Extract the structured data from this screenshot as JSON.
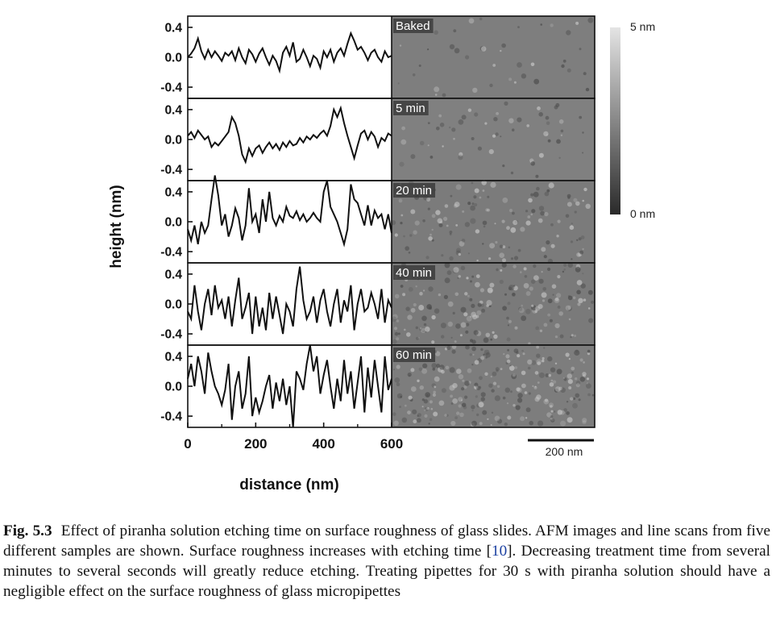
{
  "figure": {
    "ylabel": "height (nm)",
    "xlabel": "distance (nm)",
    "x_ticks": [
      "0",
      "200",
      "400",
      "600"
    ],
    "y_ticks": [
      "0.4",
      "0.0",
      "-0.4"
    ],
    "colorbar": {
      "max_label": "5 nm",
      "min_label": "0 nm"
    },
    "scale_bar_label": "200 nm"
  },
  "chart_data": {
    "type": "line",
    "xlabel": "distance (nm)",
    "ylabel": "height (nm)",
    "xlim": [
      0,
      600
    ],
    "ylim": [
      -0.55,
      0.55
    ],
    "panels": [
      {
        "label": "Baked",
        "image_tone": "#7e7e7e",
        "grain": 0.02,
        "x": [
          0,
          10,
          20,
          30,
          40,
          50,
          60,
          70,
          80,
          90,
          100,
          110,
          120,
          130,
          140,
          150,
          160,
          170,
          180,
          190,
          200,
          210,
          220,
          230,
          240,
          250,
          260,
          270,
          280,
          290,
          300,
          310,
          320,
          330,
          340,
          350,
          360,
          370,
          380,
          390,
          400,
          410,
          420,
          430,
          440,
          450,
          460,
          470,
          480,
          490,
          500,
          510,
          520,
          530,
          540,
          550,
          560,
          570,
          580,
          590,
          600
        ],
        "y": [
          0.0,
          0.05,
          0.12,
          0.25,
          0.08,
          -0.02,
          0.1,
          0.0,
          0.08,
          0.02,
          -0.05,
          0.06,
          0.02,
          0.08,
          -0.04,
          0.12,
          0.0,
          -0.08,
          0.1,
          0.04,
          -0.06,
          0.05,
          0.12,
          0.0,
          -0.1,
          0.02,
          -0.05,
          -0.18,
          0.06,
          0.14,
          0.02,
          0.2,
          -0.06,
          -0.02,
          0.1,
          0.0,
          -0.12,
          0.02,
          -0.02,
          -0.14,
          0.08,
          0.0,
          0.1,
          -0.06,
          0.06,
          0.12,
          0.02,
          0.18,
          0.32,
          0.22,
          0.1,
          0.14,
          0.06,
          -0.04,
          0.06,
          0.1,
          0.0,
          -0.06,
          0.08,
          0.0,
          0.02
        ]
      },
      {
        "label": "5 min",
        "image_tone": "#808080",
        "grain": 0.03,
        "x": [
          0,
          10,
          20,
          30,
          40,
          50,
          60,
          70,
          80,
          90,
          100,
          110,
          120,
          130,
          140,
          150,
          160,
          170,
          180,
          190,
          200,
          210,
          220,
          230,
          240,
          250,
          260,
          270,
          280,
          290,
          300,
          310,
          320,
          330,
          340,
          350,
          360,
          370,
          380,
          390,
          400,
          410,
          420,
          430,
          440,
          450,
          460,
          470,
          480,
          490,
          500,
          510,
          520,
          530,
          540,
          550,
          560,
          570,
          580,
          590,
          600
        ],
        "y": [
          0.05,
          0.1,
          0.02,
          0.12,
          0.06,
          0.0,
          0.04,
          -0.1,
          -0.04,
          -0.08,
          -0.02,
          0.04,
          0.1,
          0.3,
          0.22,
          0.05,
          -0.2,
          -0.3,
          -0.12,
          -0.22,
          -0.12,
          -0.08,
          -0.18,
          -0.1,
          -0.04,
          -0.12,
          -0.06,
          -0.14,
          -0.04,
          -0.1,
          -0.02,
          -0.08,
          -0.06,
          0.02,
          -0.04,
          0.04,
          0.0,
          0.06,
          0.02,
          0.08,
          0.12,
          0.05,
          0.18,
          0.4,
          0.3,
          0.42,
          0.22,
          0.05,
          -0.1,
          -0.25,
          -0.08,
          0.08,
          0.12,
          0.0,
          0.1,
          0.04,
          -0.1,
          0.02,
          -0.02,
          0.08,
          0.05
        ]
      },
      {
        "label": "20 min",
        "image_tone": "#7b7b7b",
        "grain": 0.07,
        "x": [
          0,
          10,
          20,
          30,
          40,
          50,
          60,
          70,
          80,
          90,
          100,
          110,
          120,
          130,
          140,
          150,
          160,
          170,
          180,
          190,
          200,
          210,
          220,
          230,
          240,
          250,
          260,
          270,
          280,
          290,
          300,
          310,
          320,
          330,
          340,
          350,
          360,
          370,
          380,
          390,
          400,
          410,
          420,
          430,
          440,
          450,
          460,
          470,
          480,
          490,
          500,
          510,
          520,
          530,
          540,
          550,
          560,
          570,
          580,
          590,
          600
        ],
        "y": [
          -0.1,
          -0.25,
          -0.05,
          -0.3,
          0.0,
          -0.15,
          -0.05,
          0.3,
          0.62,
          0.35,
          -0.05,
          0.1,
          -0.2,
          -0.05,
          0.18,
          0.05,
          -0.25,
          -0.05,
          0.45,
          0.0,
          0.1,
          -0.15,
          0.3,
          0.0,
          0.4,
          0.05,
          -0.05,
          0.08,
          0.0,
          0.2,
          0.08,
          0.05,
          0.14,
          0.02,
          0.1,
          0.0,
          0.05,
          0.12,
          0.05,
          0.0,
          0.4,
          0.55,
          0.2,
          0.1,
          0.0,
          -0.15,
          -0.3,
          -0.1,
          0.5,
          0.3,
          0.25,
          0.1,
          -0.05,
          0.22,
          -0.05,
          0.15,
          0.05,
          0.1,
          -0.1,
          0.1,
          -0.15
        ]
      },
      {
        "label": "40 min",
        "image_tone": "#7a7a7a",
        "grain": 0.1,
        "x": [
          0,
          10,
          20,
          30,
          40,
          50,
          60,
          70,
          80,
          90,
          100,
          110,
          120,
          130,
          140,
          150,
          160,
          170,
          180,
          190,
          200,
          210,
          220,
          230,
          240,
          250,
          260,
          270,
          280,
          290,
          300,
          310,
          320,
          330,
          340,
          350,
          360,
          370,
          380,
          390,
          400,
          410,
          420,
          430,
          440,
          450,
          460,
          470,
          480,
          490,
          500,
          510,
          520,
          530,
          540,
          550,
          560,
          570,
          580,
          590,
          600
        ],
        "y": [
          -0.1,
          -0.2,
          0.25,
          -0.1,
          -0.35,
          0.0,
          0.2,
          -0.15,
          0.25,
          -0.05,
          0.05,
          -0.2,
          0.1,
          -0.3,
          0.05,
          0.35,
          -0.2,
          -0.05,
          0.15,
          -0.4,
          0.1,
          -0.3,
          -0.05,
          -0.35,
          0.15,
          -0.2,
          0.1,
          -0.15,
          -0.4,
          0.0,
          -0.1,
          -0.3,
          0.2,
          0.5,
          0.05,
          -0.2,
          -0.1,
          0.1,
          -0.25,
          0.05,
          0.2,
          -0.1,
          -0.3,
          0.0,
          0.2,
          -0.25,
          0.05,
          -0.1,
          0.25,
          -0.35,
          0.0,
          0.2,
          -0.1,
          -0.05,
          0.15,
          0.0,
          -0.2,
          0.2,
          -0.25,
          0.05,
          -0.05
        ]
      },
      {
        "label": "60 min",
        "image_tone": "#7d7d7d",
        "grain": 0.13,
        "x": [
          0,
          10,
          20,
          30,
          40,
          50,
          60,
          70,
          80,
          90,
          100,
          110,
          120,
          130,
          140,
          150,
          160,
          170,
          180,
          190,
          200,
          210,
          220,
          230,
          240,
          250,
          260,
          270,
          280,
          290,
          300,
          310,
          320,
          330,
          340,
          350,
          360,
          370,
          380,
          390,
          400,
          410,
          420,
          430,
          440,
          450,
          460,
          470,
          480,
          490,
          500,
          510,
          520,
          530,
          540,
          550,
          560,
          570,
          580,
          590,
          600
        ],
        "y": [
          0.1,
          0.3,
          0.0,
          0.4,
          0.2,
          -0.1,
          0.45,
          0.2,
          0.0,
          -0.1,
          -0.25,
          -0.05,
          0.3,
          -0.45,
          0.0,
          0.2,
          -0.3,
          -0.1,
          0.4,
          -0.4,
          -0.15,
          -0.35,
          -0.2,
          0.0,
          0.15,
          -0.3,
          0.05,
          -0.2,
          0.1,
          -0.25,
          0.0,
          -0.55,
          0.2,
          0.1,
          -0.05,
          0.3,
          0.55,
          0.2,
          0.4,
          -0.1,
          0.15,
          0.35,
          0.0,
          -0.3,
          0.1,
          -0.2,
          0.35,
          -0.1,
          0.2,
          -0.3,
          0.05,
          0.4,
          -0.35,
          0.25,
          -0.15,
          0.35,
          0.0,
          -0.35,
          0.4,
          -0.05,
          0.1
        ]
      }
    ]
  },
  "caption": {
    "label": "Fig. 5.3",
    "text_before_ref": "Effect of piranha solution etching time on surface roughness of glass slides. AFM images and line scans from five different samples are shown. Surface roughness increases with etching time [",
    "ref": "10",
    "text_after_ref": "]. Decreasing treatment time from several minutes to several seconds will greatly reduce etching. Treating pipettes for 30 s with piranha solution should have a negligible effect on the surface roughness of glass micropipettes"
  }
}
